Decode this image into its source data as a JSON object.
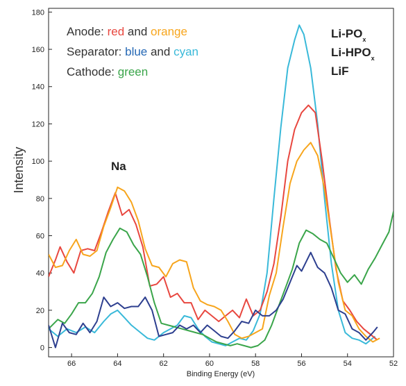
{
  "chart_data": {
    "type": "line",
    "xlabel": "Binding Energy (eV)",
    "ylabel": "Intensity",
    "xlim": [
      67,
      52
    ],
    "ylim": [
      -5,
      182
    ],
    "x_reversed": true,
    "x_ticks": [
      66,
      64,
      62,
      60,
      58,
      56,
      54,
      52
    ],
    "y_ticks": [
      0,
      20,
      40,
      60,
      80,
      100,
      120,
      140,
      160,
      180
    ],
    "grid": false,
    "legend": {
      "placement": "top-left",
      "lines": [
        {
          "prefix": "Anode: ",
          "parts": [
            {
              "text": "red",
              "color": "#e8473f"
            },
            {
              "text": " and ",
              "color": "#333333"
            },
            {
              "text": "orange",
              "color": "#f7a51c"
            }
          ]
        },
        {
          "prefix": "Separator: ",
          "parts": [
            {
              "text": "blue",
              "color": "#2568b5"
            },
            {
              "text": " and ",
              "color": "#333333"
            },
            {
              "text": "cyan",
              "color": "#39b9d9"
            }
          ]
        },
        {
          "prefix": "Cathode: ",
          "parts": [
            {
              "text": "green",
              "color": "#3aa54a"
            }
          ]
        }
      ]
    },
    "annotations": {
      "na": "Na",
      "right_labels": [
        {
          "main": "Li-PO",
          "sub": "x"
        },
        {
          "main": "Li-HPO",
          "sub": "x"
        },
        {
          "main": "LiF",
          "sub": ""
        }
      ]
    },
    "series": [
      {
        "color": "#39b9d9",
        "points": [
          [
            67,
            10
          ],
          [
            66.6,
            6
          ],
          [
            66.2,
            10
          ],
          [
            65.8,
            8
          ],
          [
            65.4,
            11
          ],
          [
            65,
            8
          ],
          [
            64.6,
            14
          ],
          [
            64.3,
            18
          ],
          [
            64,
            20
          ],
          [
            63.7,
            16
          ],
          [
            63.4,
            12
          ],
          [
            63,
            8
          ],
          [
            62.7,
            5
          ],
          [
            62.4,
            4
          ],
          [
            62,
            8
          ],
          [
            61.7,
            10
          ],
          [
            61.4,
            12
          ],
          [
            61.1,
            17
          ],
          [
            60.8,
            16
          ],
          [
            60.5,
            10
          ],
          [
            60.2,
            6
          ],
          [
            59.9,
            3
          ],
          [
            59.6,
            2
          ],
          [
            59.3,
            1
          ],
          [
            59,
            3
          ],
          [
            58.7,
            5
          ],
          [
            58.4,
            4
          ],
          [
            58.1,
            9
          ],
          [
            57.8,
            18
          ],
          [
            57.5,
            40
          ],
          [
            57.2,
            80
          ],
          [
            56.9,
            118
          ],
          [
            56.6,
            150
          ],
          [
            56.3,
            165
          ],
          [
            56.1,
            173
          ],
          [
            55.9,
            168
          ],
          [
            55.6,
            150
          ],
          [
            55.3,
            120
          ],
          [
            55,
            80
          ],
          [
            54.7,
            45
          ],
          [
            54.4,
            20
          ],
          [
            54.1,
            8
          ],
          [
            53.8,
            5
          ],
          [
            53.5,
            4
          ],
          [
            53.2,
            2
          ],
          [
            53,
            4
          ],
          [
            52.8,
            6
          ]
        ]
      },
      {
        "color": "#e8473f",
        "points": [
          [
            67,
            38
          ],
          [
            66.7,
            47
          ],
          [
            66.5,
            54
          ],
          [
            66.2,
            46
          ],
          [
            65.9,
            40
          ],
          [
            65.6,
            52
          ],
          [
            65.3,
            53
          ],
          [
            65,
            52
          ],
          [
            64.7,
            62
          ],
          [
            64.4,
            73
          ],
          [
            64.1,
            83
          ],
          [
            63.8,
            71
          ],
          [
            63.5,
            74
          ],
          [
            63.2,
            66
          ],
          [
            62.9,
            54
          ],
          [
            62.6,
            33
          ],
          [
            62.3,
            34
          ],
          [
            62,
            38
          ],
          [
            61.7,
            27
          ],
          [
            61.4,
            29
          ],
          [
            61.1,
            24
          ],
          [
            60.8,
            24
          ],
          [
            60.5,
            15
          ],
          [
            60.2,
            20
          ],
          [
            59.9,
            17
          ],
          [
            59.6,
            14
          ],
          [
            59.3,
            17
          ],
          [
            59,
            20
          ],
          [
            58.7,
            16
          ],
          [
            58.4,
            26
          ],
          [
            58.1,
            17
          ],
          [
            57.8,
            20
          ],
          [
            57.5,
            30
          ],
          [
            57.2,
            45
          ],
          [
            56.9,
            70
          ],
          [
            56.6,
            100
          ],
          [
            56.3,
            117
          ],
          [
            56,
            126
          ],
          [
            55.7,
            130
          ],
          [
            55.4,
            126
          ],
          [
            55.1,
            100
          ],
          [
            54.8,
            70
          ],
          [
            54.5,
            42
          ],
          [
            54.2,
            25
          ],
          [
            53.9,
            20
          ],
          [
            53.6,
            14
          ],
          [
            53.3,
            10
          ],
          [
            53,
            7
          ],
          [
            52.7,
            4
          ]
        ]
      },
      {
        "color": "#f7a51c",
        "points": [
          [
            67,
            50
          ],
          [
            66.7,
            43
          ],
          [
            66.4,
            44
          ],
          [
            66.1,
            52
          ],
          [
            65.8,
            58
          ],
          [
            65.5,
            50
          ],
          [
            65.2,
            49
          ],
          [
            64.9,
            52
          ],
          [
            64.6,
            65
          ],
          [
            64.3,
            75
          ],
          [
            64,
            86
          ],
          [
            63.7,
            84
          ],
          [
            63.4,
            78
          ],
          [
            63.1,
            68
          ],
          [
            62.8,
            53
          ],
          [
            62.5,
            44
          ],
          [
            62.2,
            43
          ],
          [
            61.9,
            38
          ],
          [
            61.6,
            45
          ],
          [
            61.3,
            47
          ],
          [
            61,
            46
          ],
          [
            60.7,
            32
          ],
          [
            60.4,
            25
          ],
          [
            60.1,
            23
          ],
          [
            59.8,
            22
          ],
          [
            59.5,
            20
          ],
          [
            59.2,
            14
          ],
          [
            58.9,
            7
          ],
          [
            58.6,
            5
          ],
          [
            58.3,
            6
          ],
          [
            58,
            8
          ],
          [
            57.7,
            10
          ],
          [
            57.4,
            28
          ],
          [
            57.1,
            40
          ],
          [
            56.8,
            65
          ],
          [
            56.5,
            88
          ],
          [
            56.2,
            100
          ],
          [
            55.9,
            106
          ],
          [
            55.6,
            110
          ],
          [
            55.3,
            103
          ],
          [
            55,
            85
          ],
          [
            54.7,
            60
          ],
          [
            54.4,
            35
          ],
          [
            54.1,
            20
          ],
          [
            53.8,
            17
          ],
          [
            53.5,
            10
          ],
          [
            53.2,
            6
          ],
          [
            52.9,
            3
          ],
          [
            52.6,
            5
          ]
        ]
      },
      {
        "color": "#3aa54a",
        "points": [
          [
            67,
            10
          ],
          [
            66.6,
            15
          ],
          [
            66.3,
            13
          ],
          [
            66,
            18
          ],
          [
            65.7,
            24
          ],
          [
            65.4,
            24
          ],
          [
            65.1,
            29
          ],
          [
            64.8,
            38
          ],
          [
            64.5,
            51
          ],
          [
            64.2,
            58
          ],
          [
            63.9,
            64
          ],
          [
            63.6,
            62
          ],
          [
            63.3,
            55
          ],
          [
            63,
            50
          ],
          [
            62.7,
            38
          ],
          [
            62.4,
            24
          ],
          [
            62.1,
            13
          ],
          [
            61.8,
            12
          ],
          [
            61.5,
            11
          ],
          [
            61.2,
            10
          ],
          [
            60.9,
            9
          ],
          [
            60.6,
            8
          ],
          [
            60.3,
            7
          ],
          [
            60,
            5
          ],
          [
            59.7,
            3
          ],
          [
            59.4,
            2
          ],
          [
            59.1,
            1
          ],
          [
            58.8,
            2
          ],
          [
            58.5,
            1
          ],
          [
            58.2,
            0
          ],
          [
            57.9,
            1
          ],
          [
            57.6,
            4
          ],
          [
            57.3,
            12
          ],
          [
            57,
            22
          ],
          [
            56.7,
            32
          ],
          [
            56.4,
            42
          ],
          [
            56.1,
            56
          ],
          [
            55.8,
            63
          ],
          [
            55.5,
            61
          ],
          [
            55.2,
            58
          ],
          [
            54.9,
            56
          ],
          [
            54.6,
            48
          ],
          [
            54.3,
            40
          ],
          [
            54,
            35
          ],
          [
            53.7,
            39
          ],
          [
            53.4,
            34
          ],
          [
            53.1,
            42
          ],
          [
            52.8,
            48
          ],
          [
            52.5,
            55
          ],
          [
            52.2,
            62
          ],
          [
            52,
            73
          ]
        ]
      },
      {
        "color": "#2d3f8f",
        "points": [
          [
            67,
            12
          ],
          [
            66.7,
            0
          ],
          [
            66.4,
            13
          ],
          [
            66.1,
            8
          ],
          [
            65.8,
            7
          ],
          [
            65.5,
            13
          ],
          [
            65.2,
            8
          ],
          [
            64.9,
            14
          ],
          [
            64.6,
            27
          ],
          [
            64.3,
            22
          ],
          [
            64,
            24
          ],
          [
            63.7,
            21
          ],
          [
            63.4,
            22
          ],
          [
            63.1,
            22
          ],
          [
            62.8,
            27
          ],
          [
            62.5,
            20
          ],
          [
            62.2,
            6
          ],
          [
            61.9,
            7
          ],
          [
            61.6,
            8
          ],
          [
            61.3,
            12
          ],
          [
            61,
            10
          ],
          [
            60.7,
            12
          ],
          [
            60.4,
            8
          ],
          [
            60.1,
            12
          ],
          [
            59.8,
            9
          ],
          [
            59.5,
            6
          ],
          [
            59.2,
            5
          ],
          [
            58.9,
            9
          ],
          [
            58.6,
            14
          ],
          [
            58.3,
            13
          ],
          [
            58,
            20
          ],
          [
            57.7,
            17
          ],
          [
            57.4,
            17
          ],
          [
            57.1,
            20
          ],
          [
            56.8,
            26
          ],
          [
            56.5,
            35
          ],
          [
            56.2,
            44
          ],
          [
            56,
            41
          ],
          [
            55.8,
            46
          ],
          [
            55.6,
            51
          ],
          [
            55.3,
            43
          ],
          [
            55,
            40
          ],
          [
            54.7,
            32
          ],
          [
            54.4,
            20
          ],
          [
            54.1,
            18
          ],
          [
            53.8,
            10
          ],
          [
            53.5,
            8
          ],
          [
            53.2,
            4
          ],
          [
            52.9,
            8
          ],
          [
            52.7,
            11
          ]
        ]
      }
    ]
  }
}
